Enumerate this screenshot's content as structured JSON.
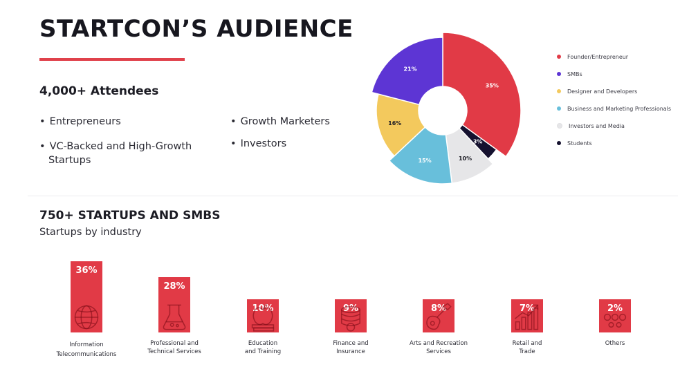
{
  "header": {
    "title": "STARTCON’S AUDIENCE",
    "attendees": "4,000+ Attendees",
    "bullets_left": [
      "Entrepreneurs",
      "VC-Backed and High-Growth",
      "Startups"
    ],
    "bullets_right": [
      "Growth Marketers",
      "Investors"
    ]
  },
  "startups": {
    "title": "750+ STARTUPS AND SMBS",
    "subtitle": "Startups by industry"
  },
  "colors": {
    "red": "#e13a46",
    "purple": "#5d35d4",
    "yellow": "#f3c95d",
    "blue": "#68bfdb",
    "light_gray": "#e6e6e8",
    "navy": "#15112f"
  },
  "chart_data": [
    {
      "type": "pie",
      "donut": true,
      "slices": [
        {
          "label": "Founder/Entrepreneur",
          "value": 35,
          "text": "35%",
          "color": "#e13a46"
        },
        {
          "label": "Students",
          "value": 3,
          "text": "3%",
          "color": "#15112f"
        },
        {
          "label": "Investors and Media",
          "value": 10,
          "text": "10%",
          "color": "#e6e6e8"
        },
        {
          "label": "Business and Marketing Professionals",
          "value": 15,
          "text": "15%",
          "color": "#68bfdb"
        },
        {
          "label": "Designer and Developers",
          "value": 16,
          "text": "16%",
          "color": "#f3c95d"
        },
        {
          "label": "SMBs",
          "value": 21,
          "text": "21%",
          "color": "#5d35d4"
        }
      ],
      "legend": [
        {
          "label": "Founder/Entrepreneur",
          "color": "#e13a46"
        },
        {
          "label": "SMBs",
          "color": "#5d35d4"
        },
        {
          "label": "Designer and Developers",
          "color": "#f3c95d"
        },
        {
          "label": "Business and Marketing Professionals",
          "color": "#68bfdb"
        },
        {
          "label": "Investors and Media",
          "color": "#e6e6e8"
        },
        {
          "label": "Students",
          "color": "#15112f"
        }
      ],
      "legend_position": "right"
    },
    {
      "type": "bar",
      "categories": [
        [
          "Information",
          "Telecommunications"
        ],
        [
          "Professional and",
          "Technical Services"
        ],
        [
          "Education",
          "and Training"
        ],
        [
          "Finance and",
          "Insurance"
        ],
        [
          "Arts and Recreation",
          "Services"
        ],
        [
          "Retail and",
          "Trade"
        ],
        [
          "Others"
        ]
      ],
      "values": [
        36,
        28,
        10,
        9,
        8,
        7,
        2
      ],
      "value_labels": [
        "36%",
        "28%",
        "10%",
        "9%",
        "8%",
        "7%",
        "2%"
      ],
      "icons": [
        "globe-icon",
        "lab-flask-icon",
        "apple-books-icon",
        "coins-icon",
        "guitar-icon",
        "growth-chart-icon",
        "dots-icon"
      ],
      "color": "#e13a46"
    }
  ]
}
